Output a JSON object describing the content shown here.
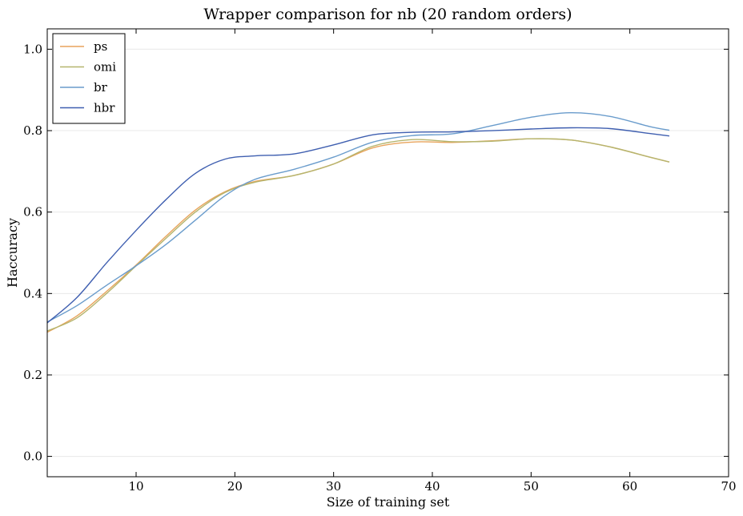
{
  "chart_data": {
    "type": "line",
    "title": "Wrapper comparison for nb (20 random orders)",
    "xlabel": "Size of training set",
    "ylabel": "Haccuracy",
    "xlim": [
      1,
      70
    ],
    "ylim": [
      -0.05,
      1.05
    ],
    "xticks": [
      10,
      20,
      30,
      40,
      50,
      60,
      70
    ],
    "yticks": [
      0.0,
      0.2,
      0.4,
      0.6,
      0.8,
      1.0
    ],
    "xtick_labels": [
      "10",
      "20",
      "30",
      "40",
      "50",
      "60",
      "70"
    ],
    "ytick_labels": [
      "0.0",
      "0.2",
      "0.4",
      "0.6",
      "0.8",
      "1.0"
    ],
    "grid": "horizontal",
    "legend_position": "top-left",
    "x": [
      1,
      4,
      7,
      10,
      13,
      16,
      19,
      22,
      26,
      30,
      34,
      38,
      42,
      46,
      50,
      54,
      58,
      62,
      64
    ],
    "series": [
      {
        "name": "ps",
        "color": "#e8a45c",
        "values": [
          0.305,
          0.345,
          0.405,
          0.47,
          0.54,
          0.605,
          0.65,
          0.675,
          0.69,
          0.718,
          0.758,
          0.772,
          0.771,
          0.775,
          0.78,
          0.777,
          0.76,
          0.735,
          0.723
        ]
      },
      {
        "name": "omi",
        "color": "#b5b56e",
        "values": [
          0.308,
          0.34,
          0.4,
          0.468,
          0.535,
          0.6,
          0.648,
          0.673,
          0.69,
          0.718,
          0.762,
          0.778,
          0.773,
          0.774,
          0.78,
          0.777,
          0.76,
          0.735,
          0.723
        ]
      },
      {
        "name": "br",
        "color": "#6a9ccc",
        "values": [
          0.33,
          0.37,
          0.42,
          0.468,
          0.52,
          0.58,
          0.64,
          0.68,
          0.705,
          0.735,
          0.772,
          0.788,
          0.792,
          0.812,
          0.833,
          0.844,
          0.835,
          0.81,
          0.801
        ]
      },
      {
        "name": "hbr",
        "color": "#3f5fb0",
        "values": [
          0.328,
          0.39,
          0.475,
          0.555,
          0.63,
          0.695,
          0.73,
          0.738,
          0.743,
          0.765,
          0.79,
          0.796,
          0.797,
          0.8,
          0.804,
          0.807,
          0.805,
          0.793,
          0.787
        ]
      }
    ]
  }
}
